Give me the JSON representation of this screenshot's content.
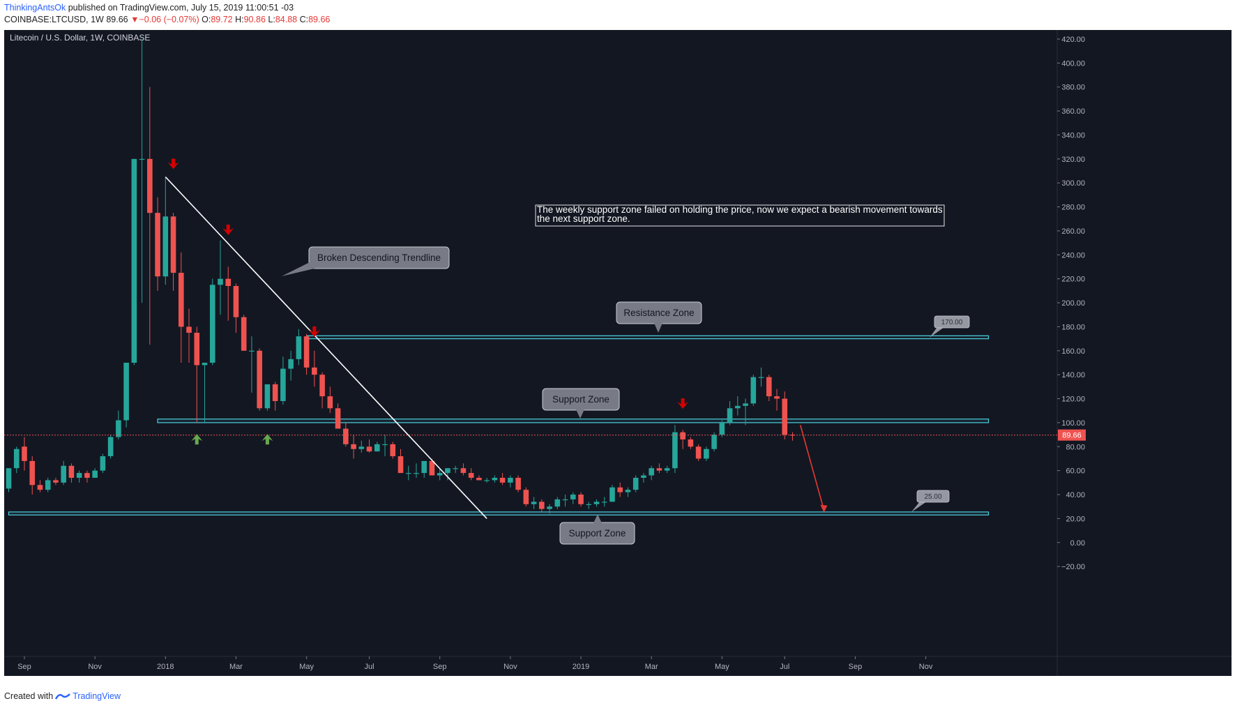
{
  "header": {
    "author": "ThinkingAntsOk",
    "published_text": "published on TradingView.com, July 15, 2019 11:00:51 -03",
    "symbol": "COINBASE:LTCUSD, 1W",
    "last_price": "89.66",
    "change_arrow": "▼",
    "change": "−0.06 (−0.07%)",
    "ohlc": {
      "o_label": "O:",
      "o": "89.72",
      "h_label": "H:",
      "h": "90.86",
      "l_label": "L:",
      "l": "84.88",
      "c_label": "C:",
      "c": "89.66"
    }
  },
  "footer": {
    "created_with": "Created with",
    "brand": "TradingView",
    "logo_icon": "tradingview-logo-icon"
  },
  "colors": {
    "background": "#131722",
    "up": "#26a69a",
    "down": "#ef5350",
    "zone": "#4dd0e1",
    "trendline": "#ffffff",
    "arrow_down": "#d50000",
    "arrow_up": "#6aa84f",
    "price_line": "#ef5350"
  },
  "chart_data": {
    "type": "candlestick",
    "title": "Litecoin / U.S. Dollar, 1W, COINBASE",
    "ylim": [
      -20,
      420
    ],
    "y_ticks": [
      "420.00",
      "400.00",
      "380.00",
      "360.00",
      "340.00",
      "320.00",
      "300.00",
      "280.00",
      "260.00",
      "240.00",
      "220.00",
      "200.00",
      "180.00",
      "160.00",
      "140.00",
      "120.00",
      "100.00",
      "80.00",
      "60.00",
      "40.00",
      "20.00",
      "0.00",
      "−20.00"
    ],
    "x_ticks": [
      "Sep",
      "Nov",
      "2018",
      "Mar",
      "May",
      "Jul",
      "Sep",
      "Nov",
      "2019",
      "Mar",
      "May",
      "Jul",
      "Sep",
      "Nov"
    ],
    "x_tick_weeks": [
      2,
      11,
      20,
      29,
      38,
      46,
      55,
      64,
      73,
      82,
      91,
      99,
      108,
      117
    ],
    "last_price_label": "89.66",
    "last_price": 89.66,
    "candles": [
      [
        0,
        45,
        62,
        42,
        62
      ],
      [
        1,
        62,
        80,
        58,
        78
      ],
      [
        2,
        80,
        88,
        60,
        68
      ],
      [
        3,
        68,
        72,
        40,
        48
      ],
      [
        4,
        48,
        52,
        42,
        44
      ],
      [
        5,
        44,
        54,
        42,
        52
      ],
      [
        6,
        52,
        54,
        48,
        50
      ],
      [
        7,
        50,
        68,
        48,
        64
      ],
      [
        8,
        64,
        66,
        50,
        54
      ],
      [
        9,
        54,
        60,
        50,
        58
      ],
      [
        10,
        58,
        60,
        50,
        54
      ],
      [
        11,
        54,
        62,
        54,
        60
      ],
      [
        12,
        60,
        74,
        58,
        72
      ],
      [
        13,
        72,
        90,
        70,
        88
      ],
      [
        14,
        88,
        110,
        86,
        102
      ],
      [
        15,
        102,
        150,
        96,
        150
      ],
      [
        16,
        150,
        320,
        148,
        320
      ],
      [
        17,
        320,
        420,
        200,
        320
      ],
      [
        18,
        320,
        380,
        165,
        275
      ],
      [
        19,
        275,
        288,
        210,
        222
      ],
      [
        20,
        222,
        305,
        215,
        272
      ],
      [
        21,
        272,
        275,
        210,
        225
      ],
      [
        22,
        225,
        242,
        150,
        180
      ],
      [
        23,
        180,
        195,
        150,
        175
      ],
      [
        24,
        175,
        180,
        100,
        148
      ],
      [
        25,
        148,
        150,
        100,
        150
      ],
      [
        26,
        150,
        220,
        148,
        215
      ],
      [
        27,
        215,
        252,
        190,
        220
      ],
      [
        28,
        220,
        230,
        185,
        214
      ],
      [
        29,
        214,
        216,
        175,
        188
      ],
      [
        30,
        188,
        190,
        160,
        160
      ],
      [
        31,
        160,
        172,
        125,
        160
      ],
      [
        32,
        160,
        162,
        110,
        112
      ],
      [
        33,
        112,
        130,
        110,
        132
      ],
      [
        34,
        132,
        134,
        110,
        118
      ],
      [
        35,
        118,
        155,
        115,
        145
      ],
      [
        36,
        145,
        160,
        135,
        153
      ],
      [
        37,
        153,
        178,
        148,
        172
      ],
      [
        38,
        172,
        174,
        140,
        146
      ],
      [
        39,
        146,
        160,
        130,
        140
      ],
      [
        40,
        140,
        142,
        112,
        122
      ],
      [
        41,
        122,
        130,
        108,
        112
      ],
      [
        42,
        112,
        116,
        95,
        95
      ],
      [
        43,
        95,
        100,
        80,
        82
      ],
      [
        44,
        82,
        90,
        70,
        78
      ],
      [
        45,
        78,
        85,
        75,
        80
      ],
      [
        46,
        80,
        86,
        75,
        76
      ],
      [
        47,
        76,
        84,
        76,
        82
      ],
      [
        48,
        82,
        90,
        72,
        82
      ],
      [
        49,
        82,
        84,
        70,
        72
      ],
      [
        50,
        72,
        78,
        60,
        58
      ],
      [
        51,
        58,
        64,
        52,
        58
      ],
      [
        52,
        58,
        66,
        54,
        58
      ],
      [
        53,
        58,
        66,
        54,
        68
      ],
      [
        54,
        68,
        70,
        56,
        56
      ],
      [
        55,
        56,
        62,
        52,
        58
      ],
      [
        56,
        58,
        62,
        52,
        62
      ],
      [
        57,
        62,
        64,
        58,
        62
      ],
      [
        58,
        62,
        66,
        56,
        58
      ],
      [
        59,
        58,
        62,
        52,
        54
      ],
      [
        60,
        54,
        56,
        52,
        52
      ],
      [
        61,
        52,
        54,
        50,
        52
      ],
      [
        62,
        52,
        56,
        50,
        54
      ],
      [
        63,
        54,
        58,
        48,
        50
      ],
      [
        64,
        50,
        56,
        46,
        54
      ],
      [
        65,
        54,
        56,
        42,
        44
      ],
      [
        66,
        44,
        46,
        30,
        32
      ],
      [
        67,
        32,
        38,
        28,
        34
      ],
      [
        68,
        34,
        36,
        26,
        28
      ],
      [
        69,
        28,
        32,
        24,
        30
      ],
      [
        70,
        30,
        38,
        28,
        36
      ],
      [
        71,
        36,
        40,
        30,
        36
      ],
      [
        72,
        36,
        42,
        32,
        40
      ],
      [
        73,
        40,
        42,
        30,
        32
      ],
      [
        74,
        32,
        34,
        28,
        32
      ],
      [
        75,
        32,
        36,
        30,
        34
      ],
      [
        76,
        34,
        38,
        30,
        34
      ],
      [
        77,
        34,
        48,
        34,
        46
      ],
      [
        78,
        46,
        50,
        38,
        42
      ],
      [
        79,
        42,
        46,
        38,
        44
      ],
      [
        80,
        44,
        56,
        42,
        54
      ],
      [
        81,
        54,
        58,
        50,
        56
      ],
      [
        82,
        56,
        64,
        52,
        62
      ],
      [
        83,
        62,
        66,
        58,
        60
      ],
      [
        84,
        60,
        64,
        58,
        62
      ],
      [
        85,
        62,
        98,
        58,
        92
      ],
      [
        86,
        92,
        94,
        78,
        86
      ],
      [
        87,
        86,
        88,
        78,
        80
      ],
      [
        88,
        80,
        82,
        68,
        70
      ],
      [
        89,
        70,
        80,
        68,
        78
      ],
      [
        90,
        78,
        92,
        76,
        90
      ],
      [
        91,
        90,
        102,
        88,
        100
      ],
      [
        92,
        100,
        118,
        98,
        112
      ],
      [
        93,
        112,
        122,
        106,
        114
      ],
      [
        94,
        114,
        120,
        98,
        116
      ],
      [
        95,
        116,
        140,
        114,
        138
      ],
      [
        96,
        138,
        146,
        130,
        138
      ],
      [
        97,
        138,
        140,
        118,
        122
      ],
      [
        98,
        122,
        128,
        110,
        120
      ],
      [
        99,
        120,
        126,
        86,
        90
      ],
      [
        100,
        90,
        92,
        85,
        89.66
      ]
    ],
    "zones": [
      {
        "name": "Resistance Zone",
        "price": 170,
        "low": 170,
        "high": 172.5,
        "from_week": 38,
        "to_week": 125
      },
      {
        "name": "Support Zone",
        "price": 100,
        "low": 100,
        "high": 103,
        "from_week": 19,
        "to_week": 125
      },
      {
        "name": "Support Zone",
        "price": 25,
        "low": 23,
        "high": 25.5,
        "from_week": 0,
        "to_week": 125
      }
    ],
    "trendline": {
      "from": [
        20,
        305
      ],
      "to": [
        61,
        20
      ]
    },
    "projection": {
      "from": [
        101,
        98
      ],
      "to": [
        104,
        25
      ]
    },
    "down_arrows": [
      [
        21,
        315
      ],
      [
        28,
        260
      ],
      [
        39,
        175
      ],
      [
        86,
        115
      ]
    ],
    "up_arrows": [
      [
        24,
        87
      ],
      [
        33,
        87
      ]
    ],
    "callouts": [
      {
        "text": "Broken Descending Trendline",
        "anchor": [
          32,
          222
        ]
      },
      {
        "text": "Resistance Zone",
        "anchor": [
          75,
          179
        ]
      },
      {
        "text": "Support Zone",
        "anchor": [
          66,
          104
        ]
      },
      {
        "text": "Support Zone",
        "anchor": [
          68,
          25
        ]
      }
    ],
    "price_tags": [
      {
        "text": "170.00",
        "anchor": [
          107,
          170
        ]
      },
      {
        "text": "25.00",
        "anchor": [
          105,
          25
        ]
      }
    ],
    "note": "The weekly support zone failed on holding the price, now we expect a bearish movement towards the next support zone."
  }
}
